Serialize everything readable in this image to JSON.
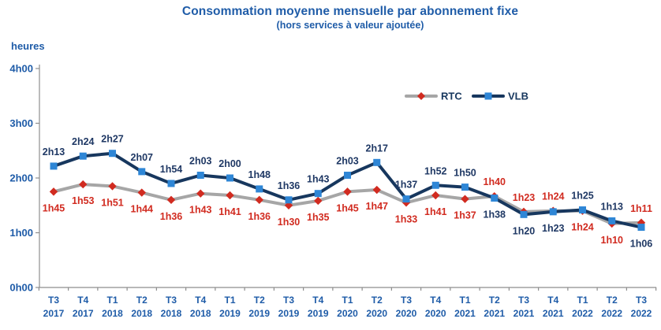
{
  "header": {
    "title": "Consommation moyenne mensuelle par abonnement fixe",
    "subtitle": "(hors services à valeur ajoutée)"
  },
  "colors": {
    "title_blue": "#1F5CA8",
    "axis_label_blue": "#1F5CA8",
    "axis_line_gray": "#8E8E8E",
    "rtc_line_gray": "#A6A6A6",
    "rtc_red": "#D12B20",
    "vlb_line_navy": "#17375E",
    "vlb_label_navy": "#1F3864",
    "vlb_marker_blue": "#2E86D6",
    "background": "#FFFFFF"
  },
  "chart_data": {
    "type": "line",
    "title": "Consommation moyenne mensuelle par abonnement fixe",
    "subtitle": "(hors services à valeur ajoutée)",
    "y_unit_label": "heures",
    "grid": "off",
    "legend_position": "top-right-inside",
    "y_axis": {
      "tick_labels": [
        "0h00",
        "1h00",
        "2h00",
        "3h00",
        "4h00"
      ],
      "tick_minutes": [
        0,
        60,
        120,
        180,
        240
      ],
      "range_minutes": [
        0,
        240
      ]
    },
    "categories": [
      {
        "quarter": "T3",
        "year": "2017"
      },
      {
        "quarter": "T4",
        "year": "2017"
      },
      {
        "quarter": "T1",
        "year": "2018"
      },
      {
        "quarter": "T2",
        "year": "2018"
      },
      {
        "quarter": "T3",
        "year": "2018"
      },
      {
        "quarter": "T4",
        "year": "2018"
      },
      {
        "quarter": "T1",
        "year": "2019"
      },
      {
        "quarter": "T2",
        "year": "2019"
      },
      {
        "quarter": "T3",
        "year": "2019"
      },
      {
        "quarter": "T4",
        "year": "2019"
      },
      {
        "quarter": "T1",
        "year": "2020"
      },
      {
        "quarter": "T2",
        "year": "2020"
      },
      {
        "quarter": "T3",
        "year": "2020"
      },
      {
        "quarter": "T4",
        "year": "2020"
      },
      {
        "quarter": "T1",
        "year": "2021"
      },
      {
        "quarter": "T2",
        "year": "2021"
      },
      {
        "quarter": "T3",
        "year": "2021"
      },
      {
        "quarter": "T4",
        "year": "2021"
      },
      {
        "quarter": "T1",
        "year": "2022"
      },
      {
        "quarter": "T2",
        "year": "2022"
      },
      {
        "quarter": "T3",
        "year": "2022"
      }
    ],
    "series": [
      {
        "name": "RTC",
        "marker": "diamond",
        "line_color": "#A6A6A6",
        "marker_color": "#D12B20",
        "label_color": "#D12B20",
        "labels": [
          "1h45",
          "1h53",
          "1h51",
          "1h44",
          "1h36",
          "1h43",
          "1h41",
          "1h36",
          "1h30",
          "1h35",
          "1h45",
          "1h47",
          "1h33",
          "1h41",
          "1h37",
          "1h40",
          "1h23",
          "1h24",
          "1h24",
          "1h10",
          "1h11"
        ]
      },
      {
        "name": "VLB",
        "marker": "square",
        "line_color": "#17375E",
        "marker_color": "#2E86D6",
        "label_color": "#1F3864",
        "labels": [
          "2h13",
          "2h24",
          "2h27",
          "2h07",
          "1h54",
          "2h03",
          "2h00",
          "1h48",
          "1h36",
          "1h43",
          "2h03",
          "2h17",
          "1h37",
          "1h52",
          "1h50",
          "1h38",
          "1h20",
          "1h23",
          "1h25",
          "1h13",
          "1h06"
        ]
      }
    ]
  }
}
